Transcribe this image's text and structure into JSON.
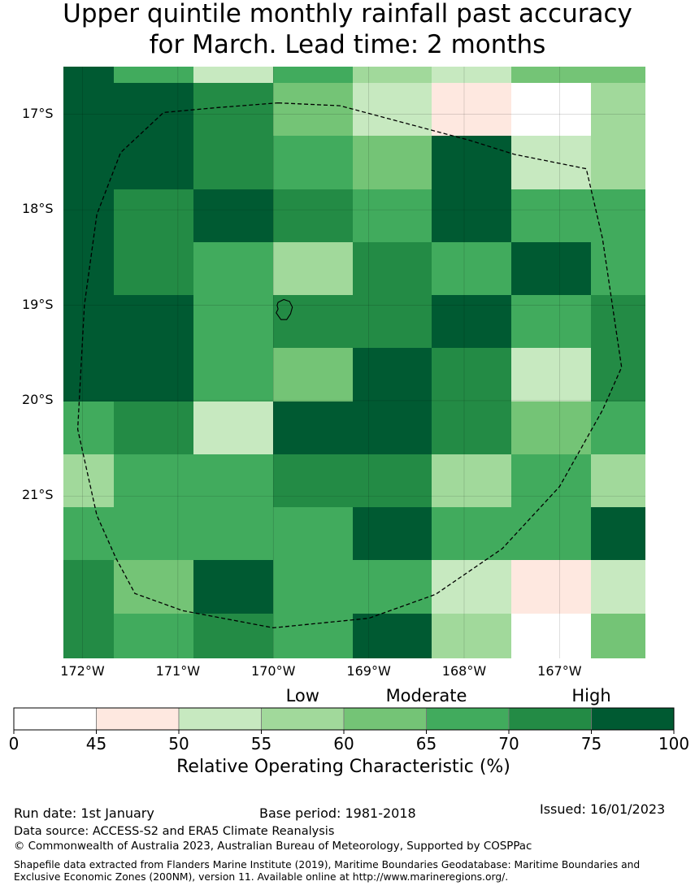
{
  "title": {
    "line1": "Upper quintile monthly rainfall past accuracy",
    "line2": "for March. Lead time: 2 months"
  },
  "map": {
    "lat_labels": [
      "17°S",
      "18°S",
      "19°S",
      "20°S",
      "21°S"
    ],
    "lat_values": [
      -17,
      -18,
      -19,
      -20,
      -21
    ],
    "lon_labels": [
      "172°W",
      "171°W",
      "170°W",
      "169°W",
      "168°W",
      "167°W"
    ],
    "lon_values": [
      -172,
      -171,
      -170,
      -169,
      -168,
      -167
    ],
    "lon_range": [
      -172.2,
      -166.1
    ],
    "lat_range": [
      -22.7,
      -16.5
    ],
    "roc_grid": [
      [
        80,
        68,
        53,
        68,
        57,
        53,
        63,
        60
      ],
      [
        80,
        80,
        72,
        63,
        53,
        47,
        0,
        57
      ],
      [
        80,
        80,
        72,
        68,
        63,
        80,
        53,
        57
      ],
      [
        80,
        72,
        80,
        72,
        68,
        80,
        68,
        68
      ],
      [
        80,
        72,
        68,
        57,
        72,
        68,
        80,
        68
      ],
      [
        80,
        80,
        68,
        72,
        72,
        80,
        68,
        72
      ],
      [
        80,
        80,
        68,
        63,
        80,
        72,
        53,
        72
      ],
      [
        68,
        72,
        53,
        80,
        80,
        72,
        63,
        68
      ],
      [
        57,
        68,
        68,
        72,
        72,
        57,
        68,
        57
      ],
      [
        68,
        68,
        68,
        68,
        80,
        68,
        68,
        80
      ],
      [
        72,
        63,
        80,
        68,
        68,
        53,
        47,
        53
      ],
      [
        72,
        68,
        72,
        68,
        80,
        57,
        0,
        63
      ]
    ],
    "eez_boundary": [
      [
        -169.95,
        -16.88
      ],
      [
        -169.3,
        -16.91
      ],
      [
        -167.95,
        -17.27
      ],
      [
        -167.47,
        -17.42
      ],
      [
        -166.72,
        -17.57
      ],
      [
        -166.55,
        -18.3
      ],
      [
        -166.35,
        -19.65
      ],
      [
        -166.55,
        -20.1
      ],
      [
        -167.0,
        -20.9
      ],
      [
        -167.6,
        -21.55
      ],
      [
        -168.3,
        -22.03
      ],
      [
        -169.0,
        -22.28
      ],
      [
        -170.0,
        -22.38
      ],
      [
        -170.95,
        -22.2
      ],
      [
        -171.45,
        -22.02
      ],
      [
        -171.65,
        -21.65
      ],
      [
        -171.85,
        -21.2
      ],
      [
        -172.05,
        -20.3
      ],
      [
        -171.98,
        -19.0
      ],
      [
        -171.85,
        -18.05
      ],
      [
        -171.6,
        -17.4
      ],
      [
        -171.15,
        -16.98
      ],
      [
        -170.6,
        -16.93
      ],
      [
        -169.95,
        -16.88
      ]
    ],
    "island_outline": [
      [
        -169.95,
        -18.97
      ],
      [
        -169.89,
        -18.94
      ],
      [
        -169.83,
        -18.96
      ],
      [
        -169.8,
        -19.02
      ],
      [
        -169.82,
        -19.09
      ],
      [
        -169.86,
        -19.15
      ],
      [
        -169.92,
        -19.15
      ],
      [
        -169.97,
        -19.08
      ],
      [
        -169.95,
        -19.04
      ],
      [
        -169.96,
        -19.0
      ],
      [
        -169.95,
        -18.97
      ]
    ]
  },
  "colorbar": {
    "category_labels": [
      "Low",
      "Moderate",
      "High"
    ],
    "category_values": [
      57.5,
      65,
      75
    ],
    "ticks": [
      "0",
      "45",
      "50",
      "55",
      "60",
      "65",
      "70",
      "75",
      "100"
    ],
    "colors": [
      "#ffffff",
      "#fee8e0",
      "#c7e9c0",
      "#a1d99b",
      "#74c476",
      "#41ab5d",
      "#238b45",
      "#005a32"
    ],
    "label": "Relative Operating Characteristic (%)"
  },
  "footer": {
    "run_date": "Run date: 1st January",
    "base_period": "Base period: 1981-2018",
    "issued": "Issued: 16/01/2023",
    "data_source": "Data source: ACCESS-S2 and ERA5 Climate Reanalysis",
    "copyright": "© Commonwealth of Australia 2023, Australian Bureau of Meteorology, Supported by COSPPac",
    "shapefile": "Shapefile data extracted from Flanders Marine Institute (2019), Maritime Boundaries Geodatabase: Maritime Boundaries and Exclusive Economic Zones (200NM), version 11. Available online at http://www.marineregions.org/."
  }
}
